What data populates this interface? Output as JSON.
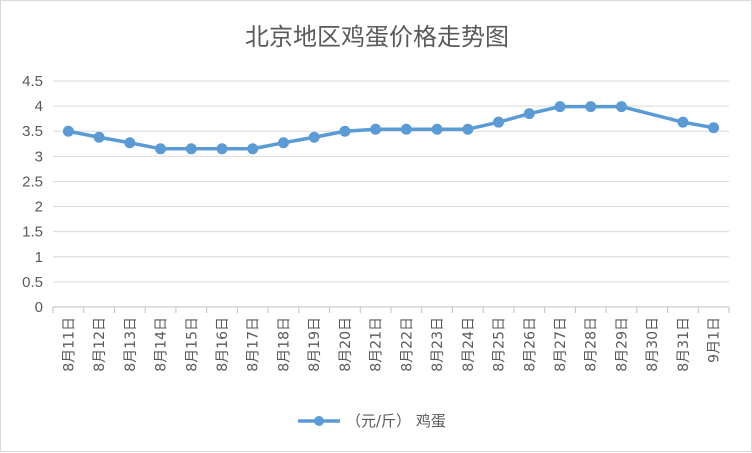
{
  "chart_data": {
    "type": "line",
    "title": "北京地区鸡蛋价格走势图",
    "xlabel": "",
    "ylabel": "",
    "categories": [
      "8月11日",
      "8月12日",
      "8月13日",
      "8月14日",
      "8月15日",
      "8月16日",
      "8月17日",
      "8月18日",
      "8月19日",
      "8月20日",
      "8月21日",
      "8月22日",
      "8月23日",
      "8月24日",
      "8月25日",
      "8月26日",
      "8月27日",
      "8月28日",
      "8月29日",
      "8月30日",
      "8月31日",
      "9月1日"
    ],
    "series": [
      {
        "name": "（元/斤） 鸡蛋",
        "values": [
          3.5,
          3.38,
          3.27,
          3.15,
          3.15,
          3.15,
          3.15,
          3.27,
          3.38,
          3.5,
          3.54,
          3.54,
          3.54,
          3.54,
          3.68,
          3.85,
          3.99,
          3.99,
          3.99,
          null,
          3.68,
          3.57
        ],
        "color": "#5b9bd5"
      }
    ],
    "ylim": [
      0,
      4.5
    ],
    "yticks": [
      "0",
      "0.5",
      "1",
      "1.5",
      "2",
      "2.5",
      "3",
      "3.5",
      "4",
      "4.5"
    ],
    "grid": true,
    "legend": "bottom"
  }
}
